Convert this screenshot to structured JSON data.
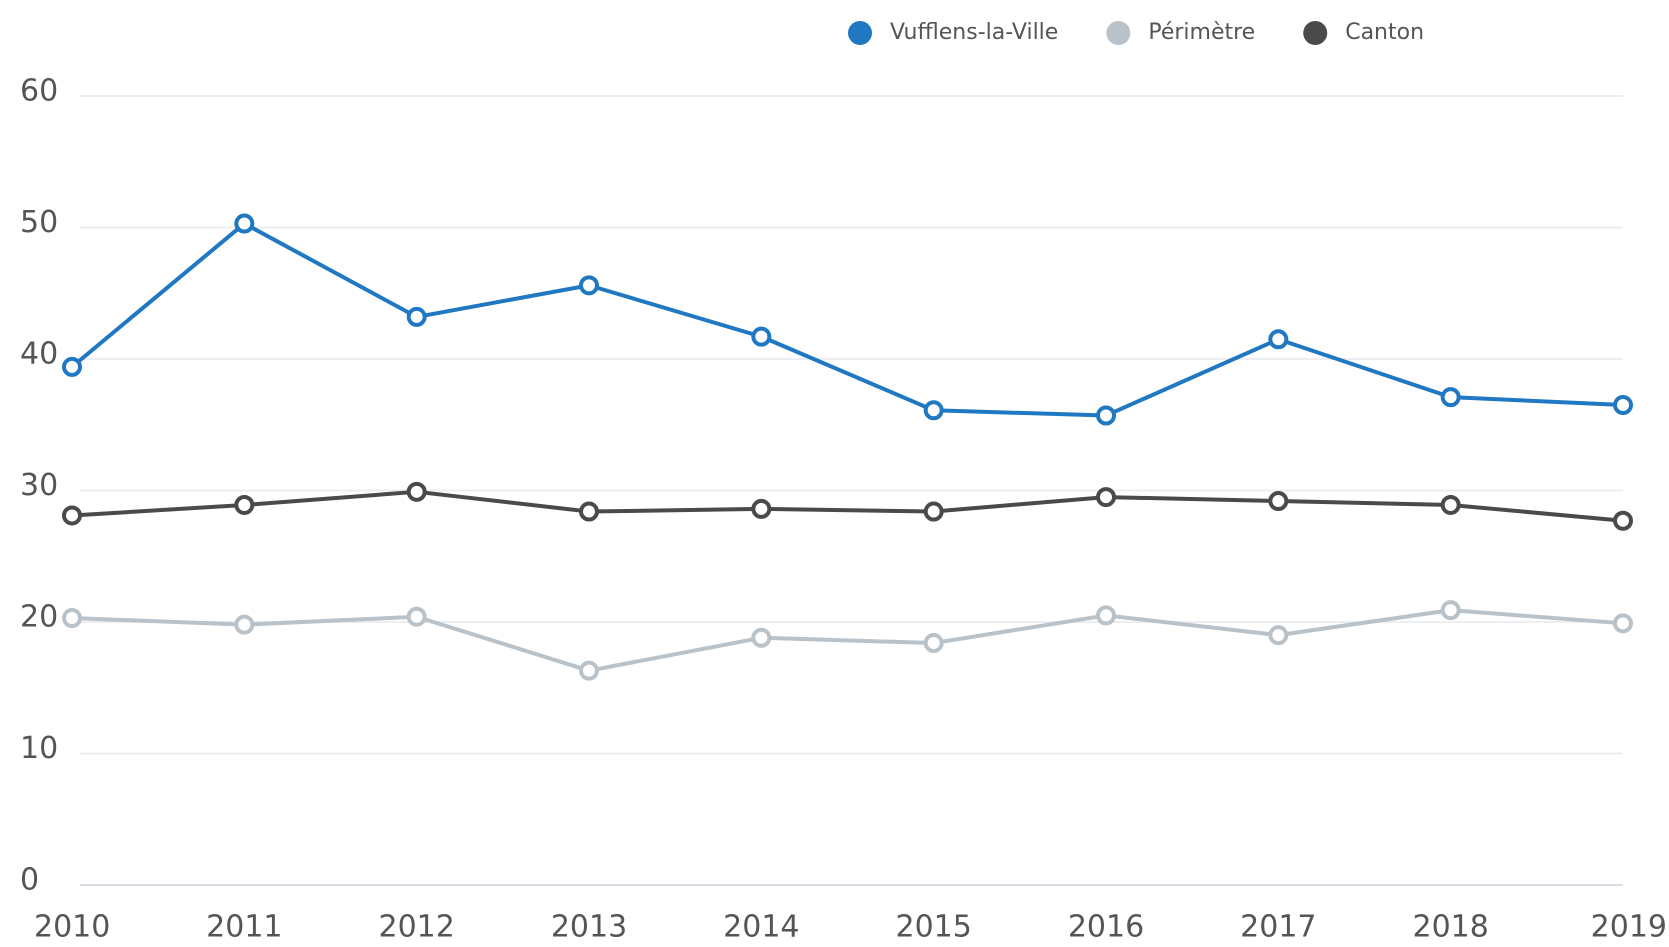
{
  "chart_data": {
    "type": "line",
    "x": [
      2010,
      2011,
      2012,
      2013,
      2014,
      2015,
      2016,
      2017,
      2018,
      2019
    ],
    "series": [
      {
        "name": "Vufflens-la-Ville",
        "color": "#1f78c1",
        "values": [
          39.4,
          50.3,
          43.2,
          45.6,
          41.7,
          36.1,
          35.7,
          41.5,
          37.1,
          36.5
        ]
      },
      {
        "name": "Périmètre",
        "color": "#b8c2c8",
        "values": [
          20.3,
          19.8,
          20.4,
          16.3,
          18.8,
          18.4,
          20.5,
          19.0,
          20.9,
          19.9
        ]
      },
      {
        "name": "Canton",
        "color": "#4a4a4a",
        "values": [
          28.1,
          28.9,
          29.9,
          28.4,
          28.6,
          28.4,
          29.5,
          29.2,
          28.9,
          27.7
        ]
      }
    ],
    "xlim": [
      2010,
      2019
    ],
    "xticks": [
      2010,
      2011,
      2012,
      2013,
      2014,
      2015,
      2016,
      2017,
      2018,
      2019
    ],
    "ylim": [
      0,
      60
    ],
    "yticks": [
      0,
      10,
      20,
      30,
      40,
      50,
      60
    ],
    "grid": true,
    "legend": "top"
  }
}
